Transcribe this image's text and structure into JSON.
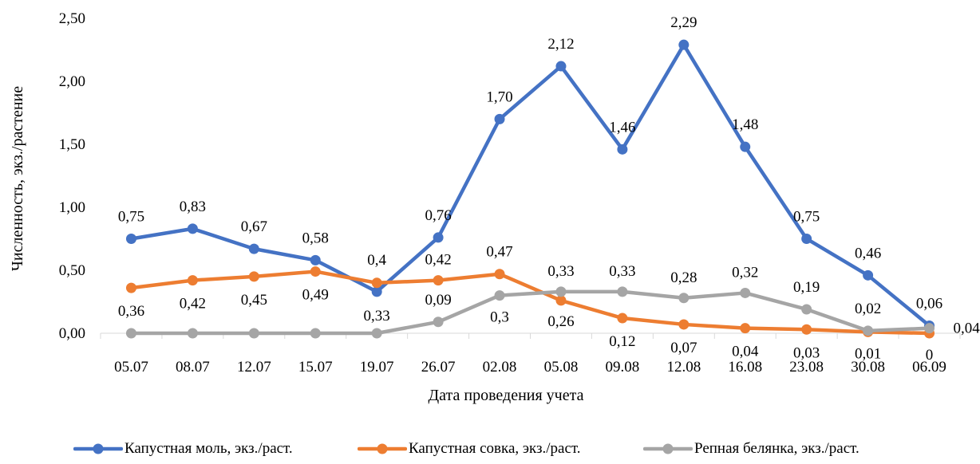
{
  "chart_data": {
    "type": "line",
    "title": "",
    "xlabel": "Дата проведения учета",
    "ylabel": "Численность, экз./растение",
    "ylim": [
      0,
      2.5
    ],
    "ytick_labels": [
      "0,00",
      "0,50",
      "1,00",
      "1,50",
      "2,00",
      "2,50"
    ],
    "grid": false,
    "legend_position": "bottom",
    "categories": [
      "05.07",
      "08.07",
      "12.07",
      "15.07",
      "19.07",
      "26.07",
      "02.08",
      "05.08",
      "09.08",
      "12.08",
      "16.08",
      "23.08",
      "30.08",
      "06.09"
    ],
    "series": [
      {
        "name": "Капустная моль, экз./раст.",
        "color": "#4472C4",
        "values": [
          0.75,
          0.83,
          0.67,
          0.58,
          0.33,
          0.76,
          1.7,
          2.12,
          1.46,
          2.29,
          1.48,
          0.75,
          0.46,
          0.06
        ],
        "labels": [
          "0,75",
          "0,83",
          "0,67",
          "0,58",
          "0,33",
          "0,76",
          "1,70",
          "2,12",
          "1,46",
          "2,29",
          "1,48",
          "0,75",
          "0,46",
          "0,06"
        ]
      },
      {
        "name": "Капустная совка, экз./раст.",
        "color": "#ED7D31",
        "values": [
          0.36,
          0.42,
          0.45,
          0.49,
          0.4,
          0.42,
          0.47,
          0.26,
          0.12,
          0.07,
          0.04,
          0.03,
          0.01,
          0
        ],
        "labels": [
          "0,36",
          "0,42",
          "0,45",
          "0,49",
          "0,4",
          "0,42",
          "0,47",
          "0,26",
          "0,12",
          "0,07",
          "0,04",
          "0,03",
          "0,01",
          "0"
        ]
      },
      {
        "name": "Репная белянка, экз./раст.",
        "color": "#A5A5A5",
        "values": [
          0,
          0,
          0,
          0,
          0,
          0.09,
          0.3,
          0.33,
          0.33,
          0.28,
          0.32,
          0.19,
          0.02,
          0.04
        ],
        "labels": [
          "",
          "",
          "",
          "",
          "",
          "0,09",
          "0,3",
          "0,33",
          "0,33",
          "0,28",
          "0,32",
          "0,19",
          "0,02",
          "0,04"
        ]
      }
    ]
  }
}
